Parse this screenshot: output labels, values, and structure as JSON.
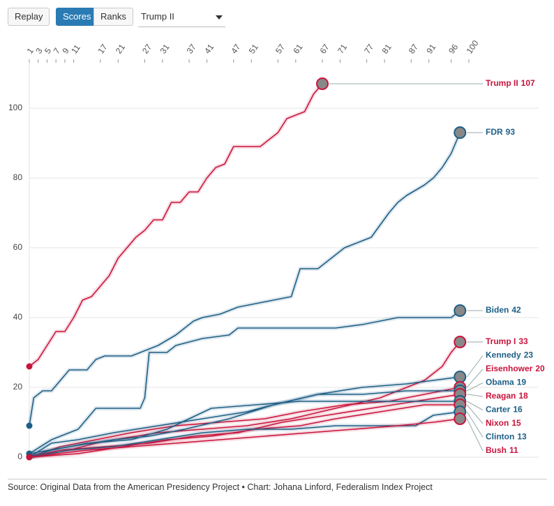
{
  "controls": {
    "replay": "Replay",
    "scores": "Scores",
    "ranks": "Ranks",
    "selected": "Trump II"
  },
  "chart_data": {
    "type": "line",
    "xlim": [
      1,
      100
    ],
    "xticks": [
      1,
      3,
      5,
      7,
      9,
      11,
      17,
      21,
      27,
      31,
      37,
      41,
      47,
      51,
      57,
      61,
      67,
      71,
      77,
      81,
      87,
      91,
      96,
      100
    ],
    "ylim": [
      0,
      114
    ],
    "yticks": [
      0,
      20,
      40,
      60,
      80,
      100
    ],
    "grid": true,
    "series": [
      {
        "name": "Trump II",
        "color": "#c8143c",
        "x": [
          1,
          3,
          5,
          7,
          9,
          11,
          13,
          15,
          17,
          19,
          21,
          23,
          25,
          27,
          29,
          31,
          33,
          35,
          37,
          39,
          41,
          43,
          45,
          47,
          49,
          51,
          53,
          55,
          57,
          59,
          61,
          63,
          65,
          67
        ],
        "values": [
          26,
          28,
          32,
          36,
          36,
          40,
          45,
          46,
          49,
          52,
          57,
          60,
          63,
          65,
          68,
          68,
          73,
          73,
          76,
          76,
          80,
          83,
          84,
          89,
          89,
          89,
          89,
          91,
          93,
          97,
          98,
          99,
          104,
          107
        ]
      },
      {
        "name": "FDR",
        "color": "#1d5f86",
        "x": [
          1,
          2,
          4,
          6,
          8,
          10,
          14,
          16,
          18,
          24,
          26,
          28,
          30,
          34,
          36,
          38,
          40,
          44,
          48,
          52,
          56,
          60,
          62,
          66,
          68,
          70,
          72,
          76,
          78,
          82,
          84,
          86,
          90,
          92,
          94,
          96,
          98
        ],
        "values": [
          9,
          17,
          19,
          19,
          22,
          25,
          25,
          28,
          29,
          29,
          30,
          31,
          32,
          35,
          37,
          39,
          40,
          41,
          43,
          44,
          45,
          46,
          54,
          54,
          56,
          58,
          60,
          62,
          63,
          70,
          73,
          75,
          78,
          80,
          83,
          87,
          93
        ]
      },
      {
        "name": "Biden",
        "color": "#1d5f86",
        "x": [
          1,
          6,
          12,
          16,
          26,
          27,
          28,
          32,
          34,
          40,
          46,
          48,
          70,
          76,
          84,
          96,
          98
        ],
        "values": [
          1,
          5,
          8,
          14,
          14,
          17,
          30,
          30,
          32,
          34,
          35,
          37,
          37,
          38,
          40,
          40,
          42
        ]
      },
      {
        "name": "Trump I",
        "color": "#c8143c",
        "x": [
          1,
          10,
          16,
          20,
          30,
          40,
          50,
          60,
          70,
          80,
          86,
          90,
          94,
          96,
          98
        ],
        "values": [
          0,
          2,
          4,
          5,
          7,
          8,
          9,
          11,
          14,
          17,
          20,
          22,
          26,
          30,
          33
        ]
      },
      {
        "name": "Kennedy",
        "color": "#1d5f86",
        "x": [
          1,
          6,
          12,
          20,
          30,
          40,
          50,
          56,
          66,
          76,
          86,
          92,
          98
        ],
        "values": [
          0,
          4,
          5,
          7,
          9,
          11,
          13,
          15,
          18,
          20,
          21,
          22,
          23
        ]
      },
      {
        "name": "Eisenhower",
        "color": "#c8143c",
        "x": [
          1,
          8,
          16,
          24,
          34,
          44,
          54,
          62,
          72,
          82,
          90,
          98
        ],
        "values": [
          0,
          3,
          5,
          7,
          9,
          10,
          11,
          13,
          15,
          16,
          18,
          20
        ]
      },
      {
        "name": "Obama",
        "color": "#1d5f86",
        "x": [
          1,
          10,
          20,
          28,
          36,
          46,
          56,
          66,
          76,
          86,
          98
        ],
        "values": [
          1,
          3,
          5,
          6,
          8,
          11,
          15,
          18,
          18,
          19,
          19
        ]
      },
      {
        "name": "Reagan",
        "color": "#c8143c",
        "x": [
          1,
          8,
          18,
          28,
          38,
          48,
          58,
          68,
          78,
          88,
          98
        ],
        "values": [
          0,
          2,
          3,
          4,
          6,
          7,
          10,
          12,
          14,
          16,
          18
        ]
      },
      {
        "name": "Carter",
        "color": "#1d5f86",
        "x": [
          1,
          6,
          14,
          24,
          32,
          42,
          52,
          62,
          74,
          84,
          98
        ],
        "values": [
          0,
          2,
          4,
          5,
          8,
          14,
          15,
          16,
          16,
          16,
          16
        ]
      },
      {
        "name": "Nixon",
        "color": "#c8143c",
        "x": [
          1,
          12,
          22,
          32,
          42,
          52,
          62,
          70,
          80,
          90,
          98
        ],
        "values": [
          0,
          1,
          3,
          5,
          6,
          8,
          9,
          11,
          13,
          15,
          15
        ]
      },
      {
        "name": "Clinton",
        "color": "#1d5f86",
        "x": [
          1,
          10,
          20,
          30,
          40,
          50,
          60,
          70,
          80,
          88,
          92,
          98
        ],
        "values": [
          0,
          2,
          3,
          5,
          7,
          8,
          8,
          9,
          9,
          9,
          12,
          13
        ]
      },
      {
        "name": "Bush",
        "color": "#c8143c",
        "x": [
          1,
          14,
          24,
          34,
          44,
          54,
          64,
          74,
          84,
          92,
          98
        ],
        "values": [
          0,
          2,
          3,
          4,
          5,
          6,
          7,
          8,
          9,
          10,
          11
        ]
      }
    ],
    "source": "Source: Original Data from the American Presidency Project • Chart: Johana Linford, Federalism Index Project"
  }
}
